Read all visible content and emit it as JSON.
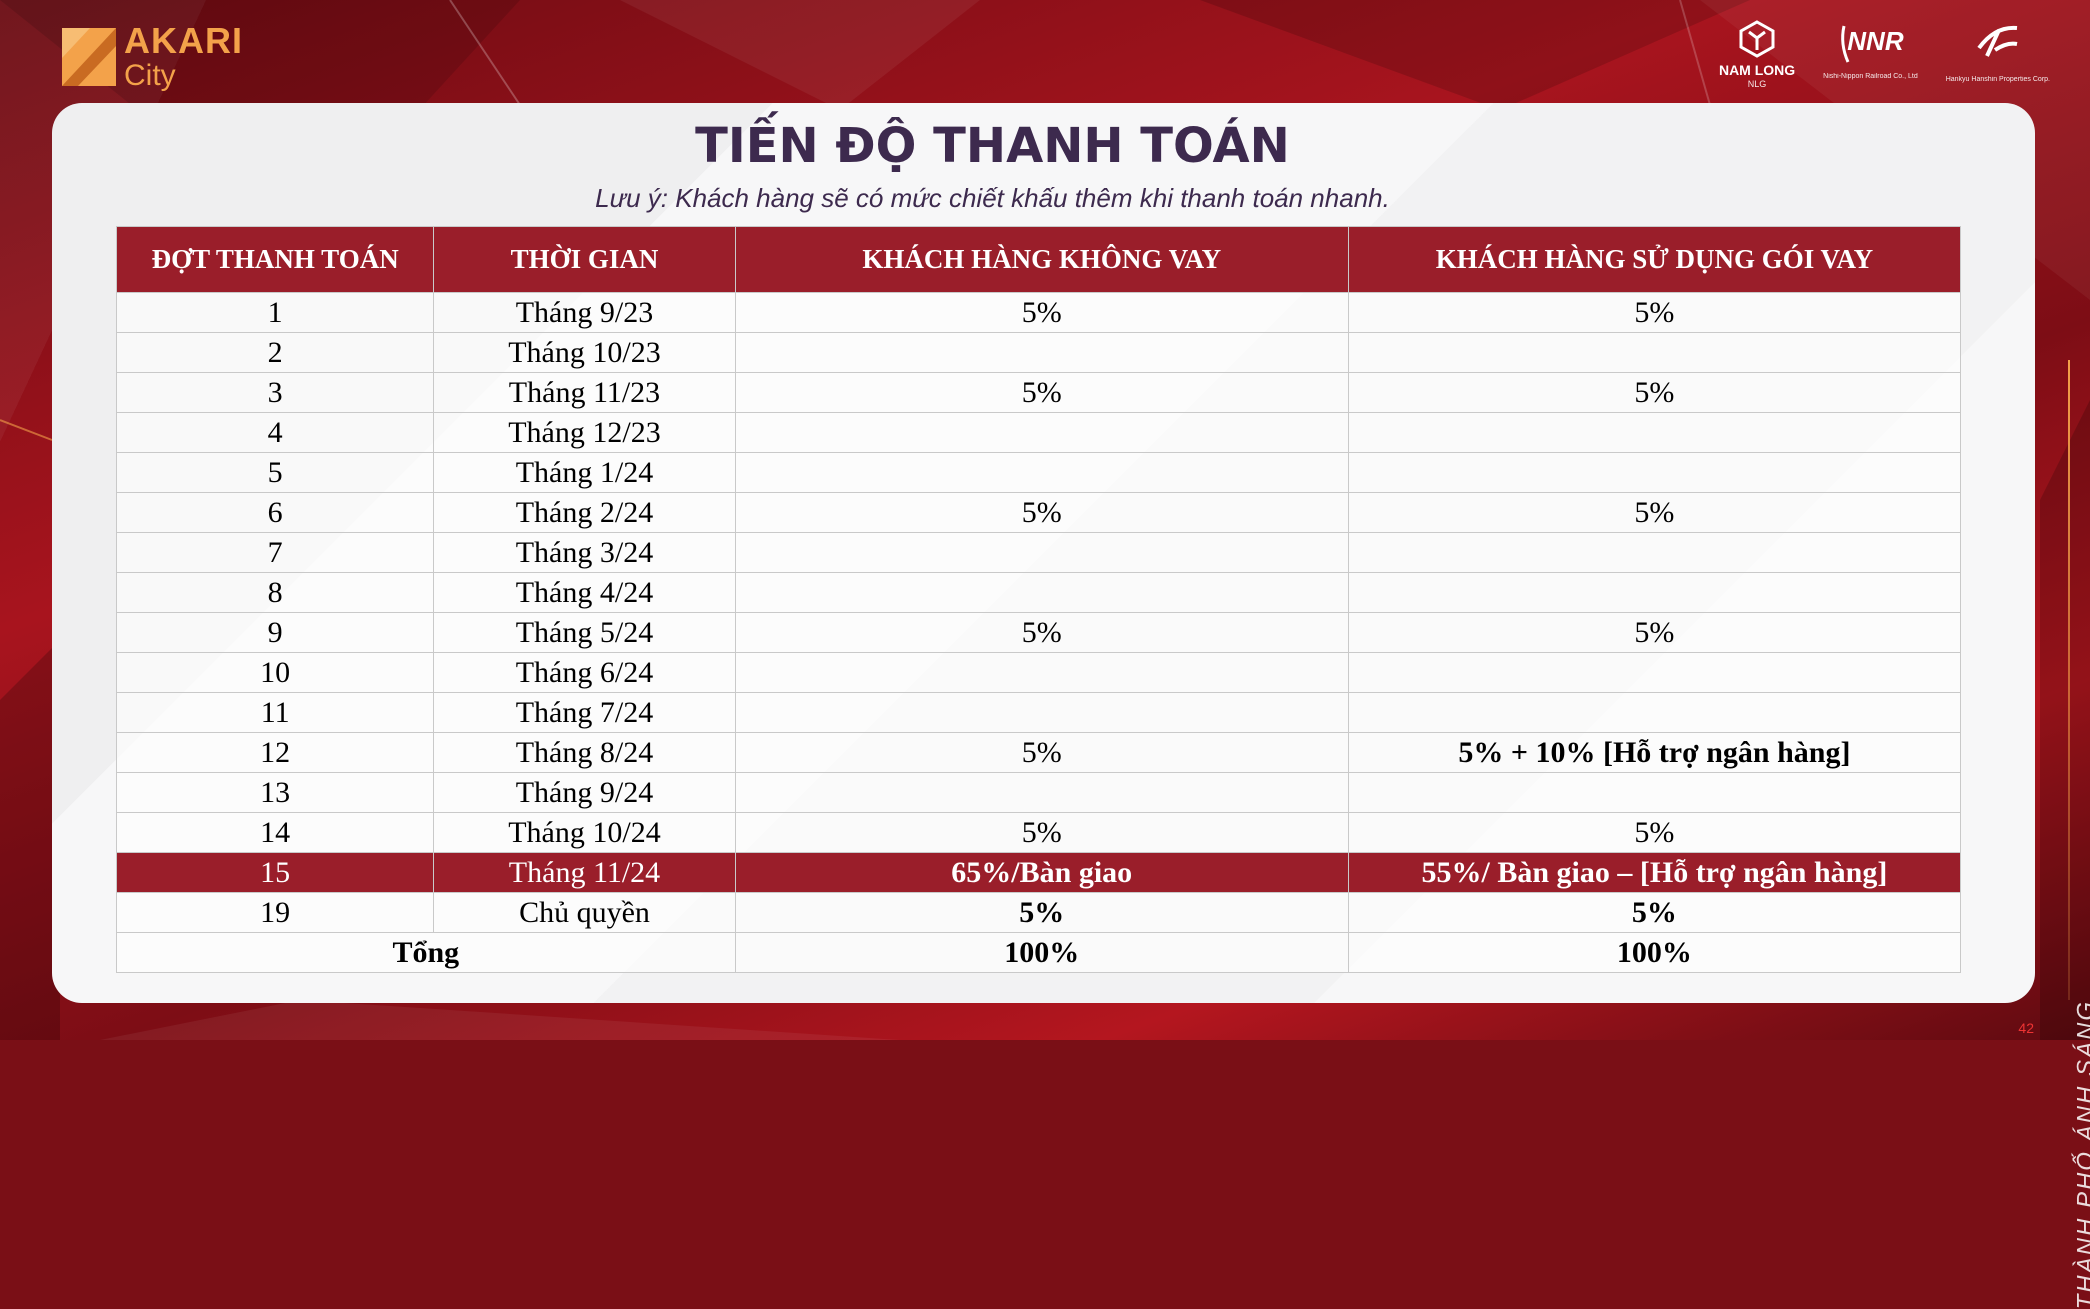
{
  "brand": {
    "line1": "AKARI",
    "line2": "City"
  },
  "partners": [
    {
      "name": "NAM LONG",
      "sub": "NLG"
    },
    {
      "name": "NNR",
      "sub": "Nishi-Nippon Railroad Co., Ltd"
    },
    {
      "name": "",
      "sub": "Hankyu Hanshin Properties Corp."
    }
  ],
  "title": "TIẾN ĐỘ THANH TOÁN",
  "note": "Lưu ý: Khách hàng sẽ có mức chiết khấu thêm khi thanh toán nhanh.",
  "table": {
    "headers": [
      "ĐỢT THANH TOÁN",
      "THỜI GIAN",
      "KHÁCH HÀNG KHÔNG VAY",
      "KHÁCH HÀNG SỬ DỤNG GÓI VAY"
    ],
    "rows": [
      {
        "dot": "1",
        "time": "Tháng 9/23",
        "no_loan": "5%",
        "loan": "5%"
      },
      {
        "dot": "2",
        "time": "Tháng 10/23",
        "no_loan": "",
        "loan": ""
      },
      {
        "dot": "3",
        "time": "Tháng 11/23",
        "no_loan": "5%",
        "loan": "5%"
      },
      {
        "dot": "4",
        "time": "Tháng 12/23",
        "no_loan": "",
        "loan": ""
      },
      {
        "dot": "5",
        "time": "Tháng 1/24",
        "no_loan": "",
        "loan": ""
      },
      {
        "dot": "6",
        "time": "Tháng 2/24",
        "no_loan": "5%",
        "loan": "5%"
      },
      {
        "dot": "7",
        "time": "Tháng 3/24",
        "no_loan": "",
        "loan": ""
      },
      {
        "dot": "8",
        "time": "Tháng 4/24",
        "no_loan": "",
        "loan": ""
      },
      {
        "dot": "9",
        "time": "Tháng 5/24",
        "no_loan": "5%",
        "loan": "5%"
      },
      {
        "dot": "10",
        "time": "Tháng 6/24",
        "no_loan": "",
        "loan": ""
      },
      {
        "dot": "11",
        "time": "Tháng 7/24",
        "no_loan": "",
        "loan": ""
      },
      {
        "dot": "12",
        "time": "Tháng 8/24",
        "no_loan": "5%",
        "loan": "5% + 10% [Hỗ trợ ngân hàng]"
      },
      {
        "dot": "13",
        "time": "Tháng 9/24",
        "no_loan": "",
        "loan": ""
      },
      {
        "dot": "14",
        "time": "Tháng 10/24",
        "no_loan": "5%",
        "loan": "5%"
      },
      {
        "dot": "15",
        "time": "Tháng 11/24",
        "no_loan": "65%/Bàn giao",
        "loan": "55%/ Bàn giao – [Hỗ trợ ngân hàng]"
      },
      {
        "dot": "19",
        "time": "Chủ quyền",
        "no_loan": "5%",
        "loan": "5%"
      }
    ],
    "total": {
      "label": "Tổng",
      "no_loan": "100%",
      "loan": "100%"
    }
  },
  "side_text": "THÀNH PHỐ ÁNH SÁNG",
  "page_number": "42",
  "colors": {
    "header_red": "#9a1e2a",
    "title": "#3d2a4e",
    "brand_orange": "#f3a24a"
  }
}
